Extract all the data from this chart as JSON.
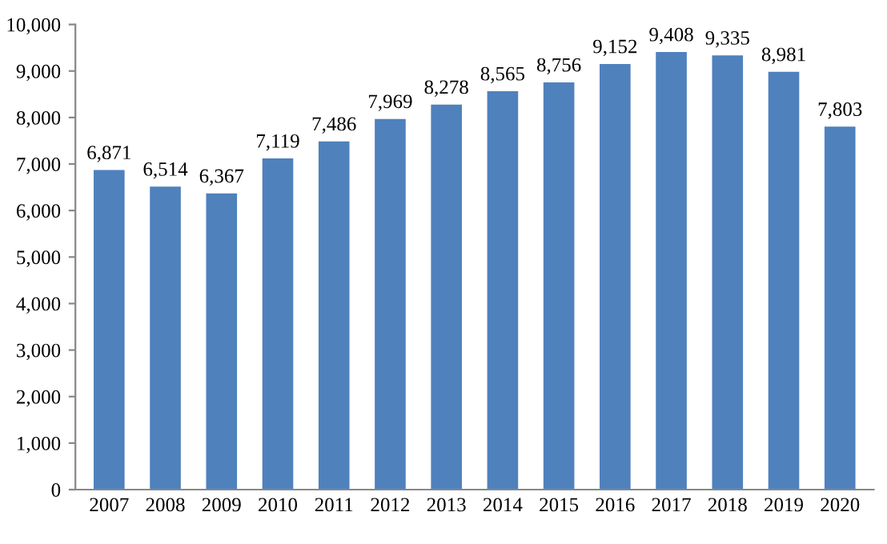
{
  "chart_data": {
    "type": "bar",
    "categories": [
      "2007",
      "2008",
      "2009",
      "2010",
      "2011",
      "2012",
      "2013",
      "2014",
      "2015",
      "2016",
      "2017",
      "2018",
      "2019",
      "2020"
    ],
    "values": [
      6871,
      6514,
      6367,
      7119,
      7486,
      7969,
      8278,
      8565,
      8756,
      9152,
      9408,
      9335,
      8981,
      7803
    ],
    "value_labels": [
      "6,871",
      "6,514",
      "6,367",
      "7,119",
      "7,486",
      "7,969",
      "8,278",
      "8,565",
      "8,756",
      "9,152",
      "9,408",
      "9,335",
      "8,981",
      "7,803"
    ],
    "color": "#4f81bd",
    "ylim": [
      0,
      10000
    ],
    "yticks": [
      0,
      {
        "value": 1000,
        "label": "1,000"
      },
      {
        "value": 2000,
        "label": "2,000"
      },
      {
        "value": 3000,
        "label": "3,000"
      },
      {
        "value": 4000,
        "label": "4,000"
      },
      {
        "value": 5000,
        "label": "5,000"
      },
      {
        "value": 6000,
        "label": "6,000"
      },
      {
        "value": 7000,
        "label": "7,000"
      },
      {
        "value": 8000,
        "label": "8,000"
      },
      {
        "value": 9000,
        "label": "9,000"
      },
      {
        "value": 10000,
        "label": "10,000"
      }
    ],
    "grid": false
  }
}
